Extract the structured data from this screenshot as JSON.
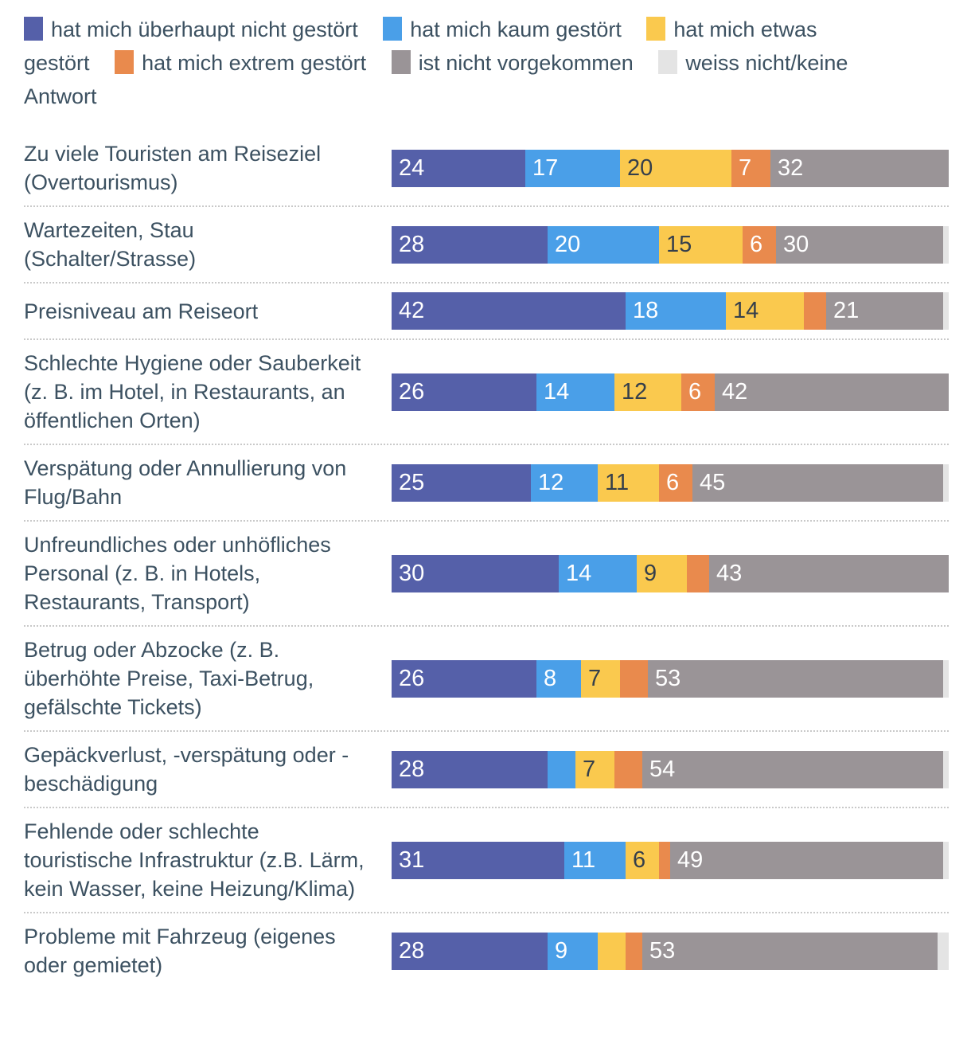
{
  "colors": {
    "background": "#ffffff",
    "text": "#3C5161",
    "value_on_light": "#353F4B",
    "value_on_dark": "#ffffff",
    "separator": "#c9c9c9"
  },
  "chart_data": {
    "type": "bar",
    "orientation": "horizontal",
    "stacked": true,
    "unit": "percent",
    "xlim": [
      0,
      100
    ],
    "grid": false,
    "legend_position": "top",
    "value_label_threshold": 6,
    "categories": [
      "Zu viele Touristen am Reiseziel (Overtourismus)",
      "Wartezeiten, Stau (Schalter/Strasse)",
      "Preisniveau am Reiseort",
      "Schlechte Hygiene oder Sauberkeit (z. B. im Hotel, in Restaurants, an öffentlichen Orten)",
      "Verspätung oder Annullierung von Flug/Bahn",
      "Unfreundliches oder unhöfliches Personal (z. B. in Hotels, Restaurants, Transport)",
      "Betrug oder Abzocke (z. B. überhöhte Preise, Taxi-Betrug, gefälschte Tickets)",
      "Gepäckverlust, -verspätung oder -beschädigung",
      "Fehlende oder schlechte touristische Infrastruktur (z.B. Lärm, kein Wasser, keine Heizung/Klima)",
      "Probleme mit Fahrzeug (eigenes oder gemietet)"
    ],
    "series": [
      {
        "name": "hat mich überhaupt nicht gestört",
        "color": "#5560A9",
        "values": [
          24,
          28,
          42,
          26,
          25,
          30,
          26,
          28,
          31,
          28
        ]
      },
      {
        "name": "hat mich kaum gestört",
        "color": "#4A9FE8",
        "values": [
          17,
          20,
          18,
          14,
          12,
          14,
          8,
          5,
          11,
          9
        ]
      },
      {
        "name": "hat mich etwas gestört",
        "color": "#FAC94E",
        "values": [
          20,
          15,
          14,
          12,
          11,
          9,
          7,
          7,
          6,
          5
        ]
      },
      {
        "name": "hat mich extrem gestört",
        "color": "#E98A4D",
        "values": [
          7,
          6,
          4,
          6,
          6,
          4,
          5,
          5,
          2,
          3
        ]
      },
      {
        "name": "ist nicht vorgekommen",
        "color": "#9A9497",
        "values": [
          32,
          30,
          21,
          42,
          45,
          43,
          53,
          54,
          49,
          53
        ]
      },
      {
        "name": "weiss nicht/keine Antwort",
        "color": "#E4E4E4",
        "values": [
          0,
          1,
          1,
          0,
          1,
          0,
          1,
          1,
          1,
          2
        ]
      }
    ]
  }
}
